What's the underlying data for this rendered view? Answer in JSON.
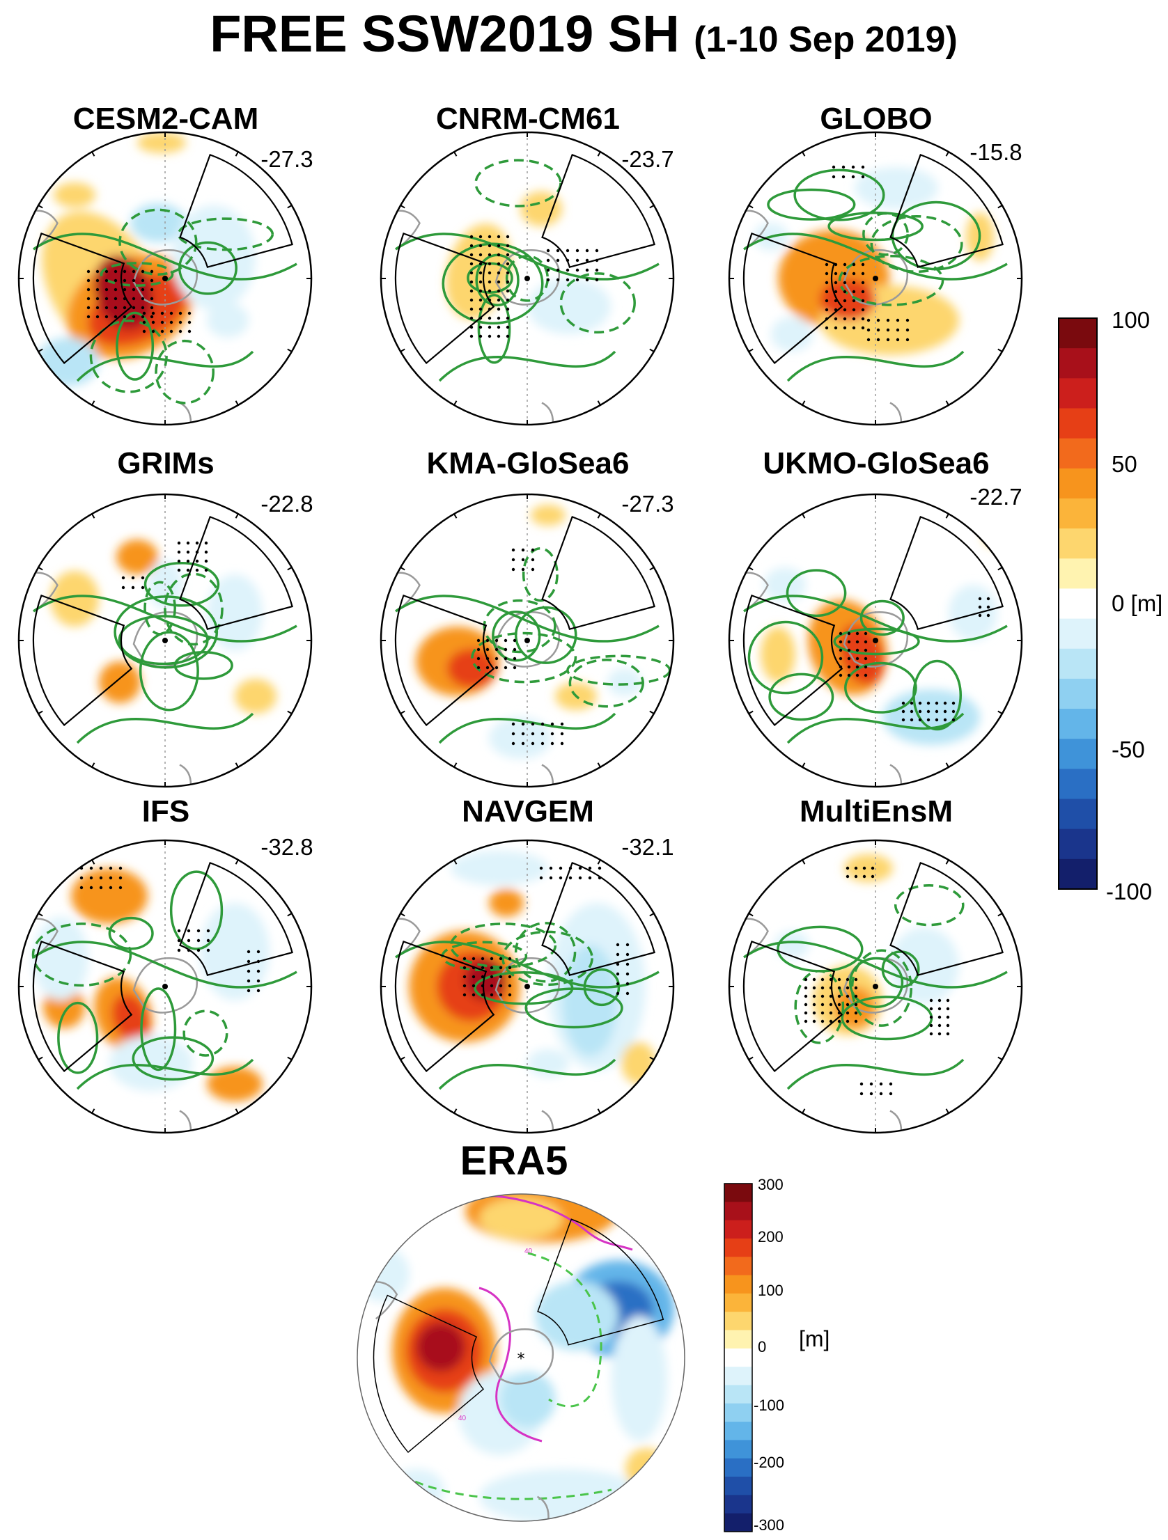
{
  "figure": {
    "title_main": "FREE SSW2019 SH",
    "title_period": "(1-10 Sep 2019)"
  },
  "chart_data": [
    {
      "type": "heatmap",
      "projection": "polar-stereographic",
      "hemisphere": "south",
      "panels": [
        {
          "name": "CESM2-CAM",
          "value": "-27.3"
        },
        {
          "name": "CNRM-CM61",
          "value": "-23.7"
        },
        {
          "name": "GLOBO",
          "value": "-15.8"
        },
        {
          "name": "GRIMs",
          "value": "-22.8"
        },
        {
          "name": "KMA-GloSea6",
          "value": "-27.3"
        },
        {
          "name": "UKMO-GloSea6",
          "value": "-22.7"
        },
        {
          "name": "IFS",
          "value": "-32.8"
        },
        {
          "name": "NAVGEM",
          "value": "-32.1"
        },
        {
          "name": "MultiEnsM",
          "value": ""
        }
      ],
      "colorbar": {
        "ticks": [
          "100",
          "50",
          "0 [m]",
          "-50",
          "-100"
        ],
        "range": [
          -100,
          100
        ],
        "colors": [
          "#7a0a0e",
          "#a8101a",
          "#cc1f1c",
          "#e63f16",
          "#f26a1c",
          "#f7941d",
          "#fbb43a",
          "#fdd66e",
          "#fff3b0",
          "#ffffff",
          "#def3fb",
          "#b9e5f6",
          "#8fd0f1",
          "#63b5e9",
          "#3f93d9",
          "#2a6fc4",
          "#1f4fa8",
          "#1a358c",
          "#131f6b"
        ]
      },
      "stippling": true,
      "contours": "green"
    },
    {
      "type": "heatmap",
      "projection": "polar-stereographic",
      "hemisphere": "south",
      "panels": [
        {
          "name": "ERA5"
        }
      ],
      "colorbar": {
        "ticks": [
          "300",
          "200",
          "100",
          "0",
          "-100",
          "-200",
          "-300"
        ],
        "unit": "[m]",
        "range": [
          -300,
          300
        ],
        "colors": [
          "#7a0a0e",
          "#a8101a",
          "#cc1f1c",
          "#e63f16",
          "#f26a1c",
          "#f7941d",
          "#fbb43a",
          "#fdd66e",
          "#fff3b0",
          "#ffffff",
          "#def3fb",
          "#b9e5f6",
          "#8fd0f1",
          "#63b5e9",
          "#3f93d9",
          "#2a6fc4",
          "#1f4fa8",
          "#1a358c",
          "#131f6b"
        ]
      },
      "contour_labels": [
        "40",
        "40",
        "40",
        "40",
        "40"
      ],
      "contours": "magenta and green dashed"
    }
  ]
}
